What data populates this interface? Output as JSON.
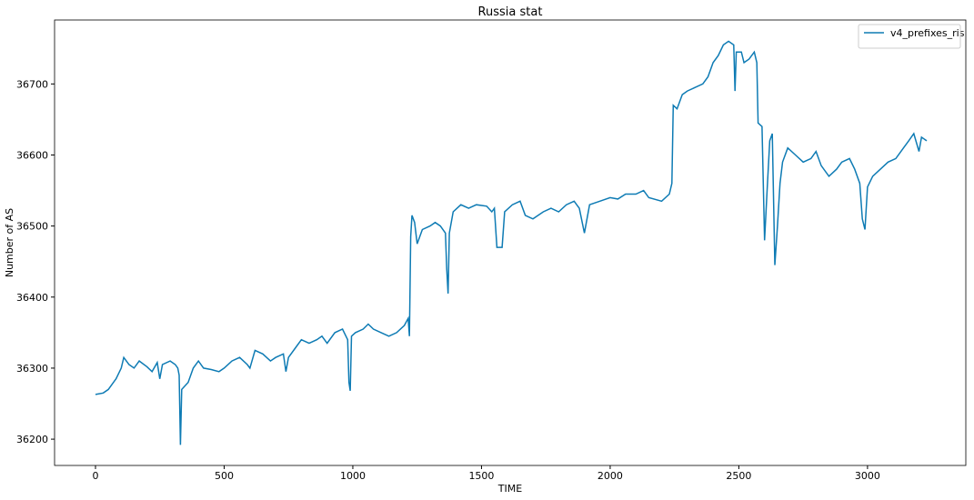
{
  "chart_data": {
    "type": "line",
    "title": "Russia stat",
    "xlabel": "TIME",
    "ylabel": "Number of AS",
    "legend": "upper right",
    "x": [
      0,
      30,
      50,
      80,
      100,
      110,
      130,
      150,
      170,
      200,
      220,
      240,
      250,
      260,
      290,
      310,
      320,
      325,
      330,
      335,
      360,
      380,
      400,
      420,
      450,
      480,
      500,
      530,
      560,
      590,
      600,
      620,
      650,
      680,
      700,
      730,
      740,
      750,
      780,
      800,
      830,
      860,
      880,
      900,
      930,
      960,
      980,
      985,
      990,
      995,
      1010,
      1040,
      1060,
      1080,
      1110,
      1140,
      1170,
      1200,
      1215,
      1220,
      1225,
      1230,
      1240,
      1250,
      1270,
      1300,
      1320,
      1340,
      1360,
      1365,
      1370,
      1375,
      1390,
      1420,
      1450,
      1480,
      1520,
      1540,
      1550,
      1560,
      1580,
      1590,
      1620,
      1650,
      1670,
      1700,
      1740,
      1770,
      1800,
      1830,
      1860,
      1880,
      1900,
      1920,
      1960,
      2000,
      2030,
      2060,
      2100,
      2130,
      2150,
      2200,
      2230,
      2240,
      2245,
      2260,
      2280,
      2300,
      2330,
      2360,
      2380,
      2400,
      2420,
      2440,
      2460,
      2480,
      2485,
      2490,
      2510,
      2520,
      2540,
      2560,
      2570,
      2575,
      2590,
      2600,
      2610,
      2620,
      2630,
      2640,
      2650,
      2660,
      2670,
      2690,
      2720,
      2750,
      2780,
      2800,
      2820,
      2850,
      2880,
      2900,
      2930,
      2950,
      2970,
      2980,
      2990,
      3000,
      3020,
      3050,
      3080,
      3110,
      3140,
      3160,
      3180,
      3200,
      3210,
      3230
    ],
    "series": [
      {
        "name": "v4_prefixes_ris",
        "color": "#0e7bb4",
        "values": [
          36263,
          36265,
          36270,
          36285,
          36300,
          36315,
          36305,
          36300,
          36310,
          36302,
          36295,
          36308,
          36285,
          36305,
          36310,
          36305,
          36300,
          36290,
          36192,
          36270,
          36280,
          36300,
          36310,
          36300,
          36298,
          36295,
          36300,
          36310,
          36315,
          36305,
          36300,
          36325,
          36320,
          36310,
          36315,
          36320,
          36295,
          36315,
          36330,
          36340,
          36335,
          36340,
          36345,
          36335,
          36350,
          36355,
          36340,
          36280,
          36268,
          36345,
          36350,
          36355,
          36362,
          36355,
          36350,
          36345,
          36350,
          36360,
          36370,
          36345,
          36485,
          36515,
          36505,
          36475,
          36495,
          36500,
          36505,
          36500,
          36490,
          36440,
          36405,
          36490,
          36520,
          36530,
          36525,
          36530,
          36528,
          36520,
          36525,
          36470,
          36470,
          36520,
          36530,
          36535,
          36515,
          36510,
          36520,
          36525,
          36520,
          36530,
          36535,
          36525,
          36490,
          36530,
          36535,
          36540,
          36538,
          36545,
          36545,
          36550,
          36540,
          36535,
          36545,
          36560,
          36670,
          36665,
          36685,
          36690,
          36695,
          36700,
          36710,
          36730,
          36740,
          36755,
          36760,
          36755,
          36690,
          36745,
          36745,
          36730,
          36735,
          36745,
          36730,
          36645,
          36640,
          36480,
          36550,
          36620,
          36630,
          36445,
          36500,
          36560,
          36590,
          36610,
          36600,
          36590,
          36595,
          36605,
          36585,
          36570,
          36580,
          36590,
          36595,
          36580,
          36560,
          36510,
          36495,
          36555,
          36570,
          36580,
          36590,
          36595,
          36610,
          36620,
          36630,
          36605,
          36625,
          36620
        ]
      }
    ],
    "xlim": [
      -159,
      3382
    ],
    "ylim": [
      36163,
      36790
    ],
    "xticks": [
      0,
      500,
      1000,
      1500,
      2000,
      2500,
      3000
    ],
    "yticks": [
      36200,
      36300,
      36400,
      36500,
      36600,
      36700
    ]
  }
}
